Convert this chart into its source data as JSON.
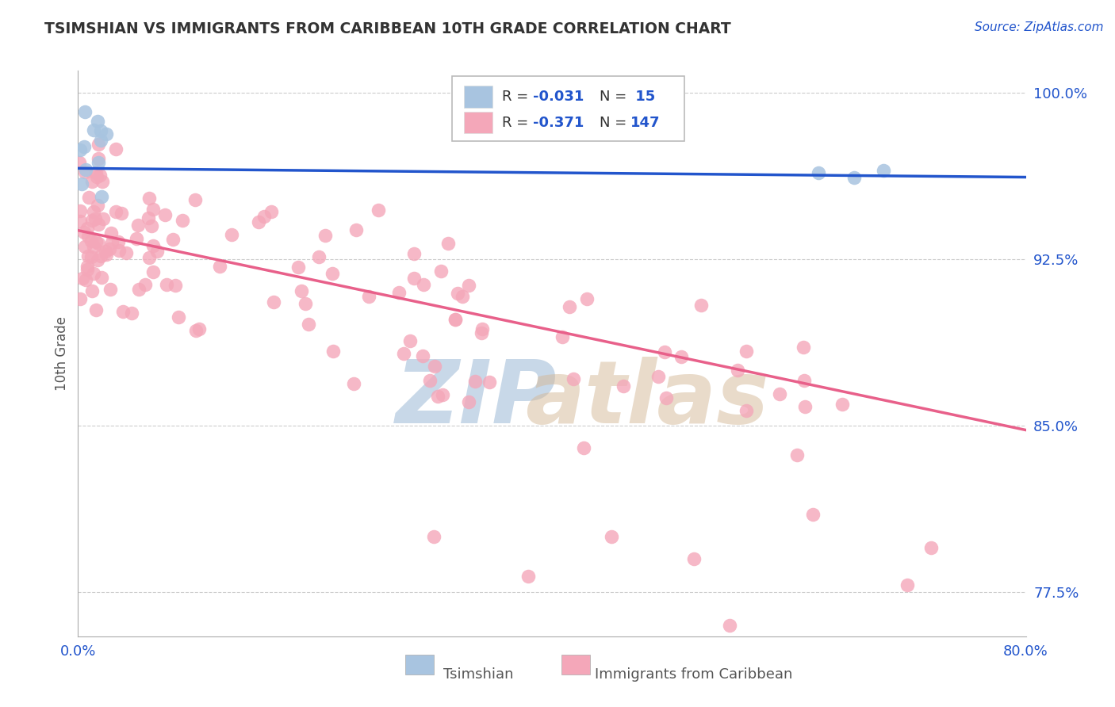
{
  "title": "TSIMSHIAN VS IMMIGRANTS FROM CARIBBEAN 10TH GRADE CORRELATION CHART",
  "source_text": "Source: ZipAtlas.com",
  "xlabel_blue": "Tsimshian",
  "xlabel_pink": "Immigrants from Caribbean",
  "ylabel": "10th Grade",
  "xlim": [
    0.0,
    0.8
  ],
  "ylim": [
    0.755,
    1.01
  ],
  "xticks": [
    0.0,
    0.8
  ],
  "xtick_labels": [
    "0.0%",
    "80.0%"
  ],
  "yticks": [
    1.0,
    0.925,
    0.85,
    0.775
  ],
  "ytick_labels": [
    "100.0%",
    "92.5%",
    "85.0%",
    "77.5%"
  ],
  "blue_color": "#a8c4e0",
  "pink_color": "#f4a7b9",
  "blue_line_color": "#2255cc",
  "pink_line_color": "#e8608a",
  "axis_color": "#2255cc",
  "title_color": "#333333",
  "watermark_zip_color": "#c8d8e8",
  "watermark_atlas_color": "#d4b896",
  "blue_trend_x": [
    0.0,
    0.8
  ],
  "blue_trend_y": [
    0.966,
    0.962
  ],
  "pink_trend_x": [
    0.0,
    0.8
  ],
  "pink_trend_y": [
    0.938,
    0.848
  ]
}
